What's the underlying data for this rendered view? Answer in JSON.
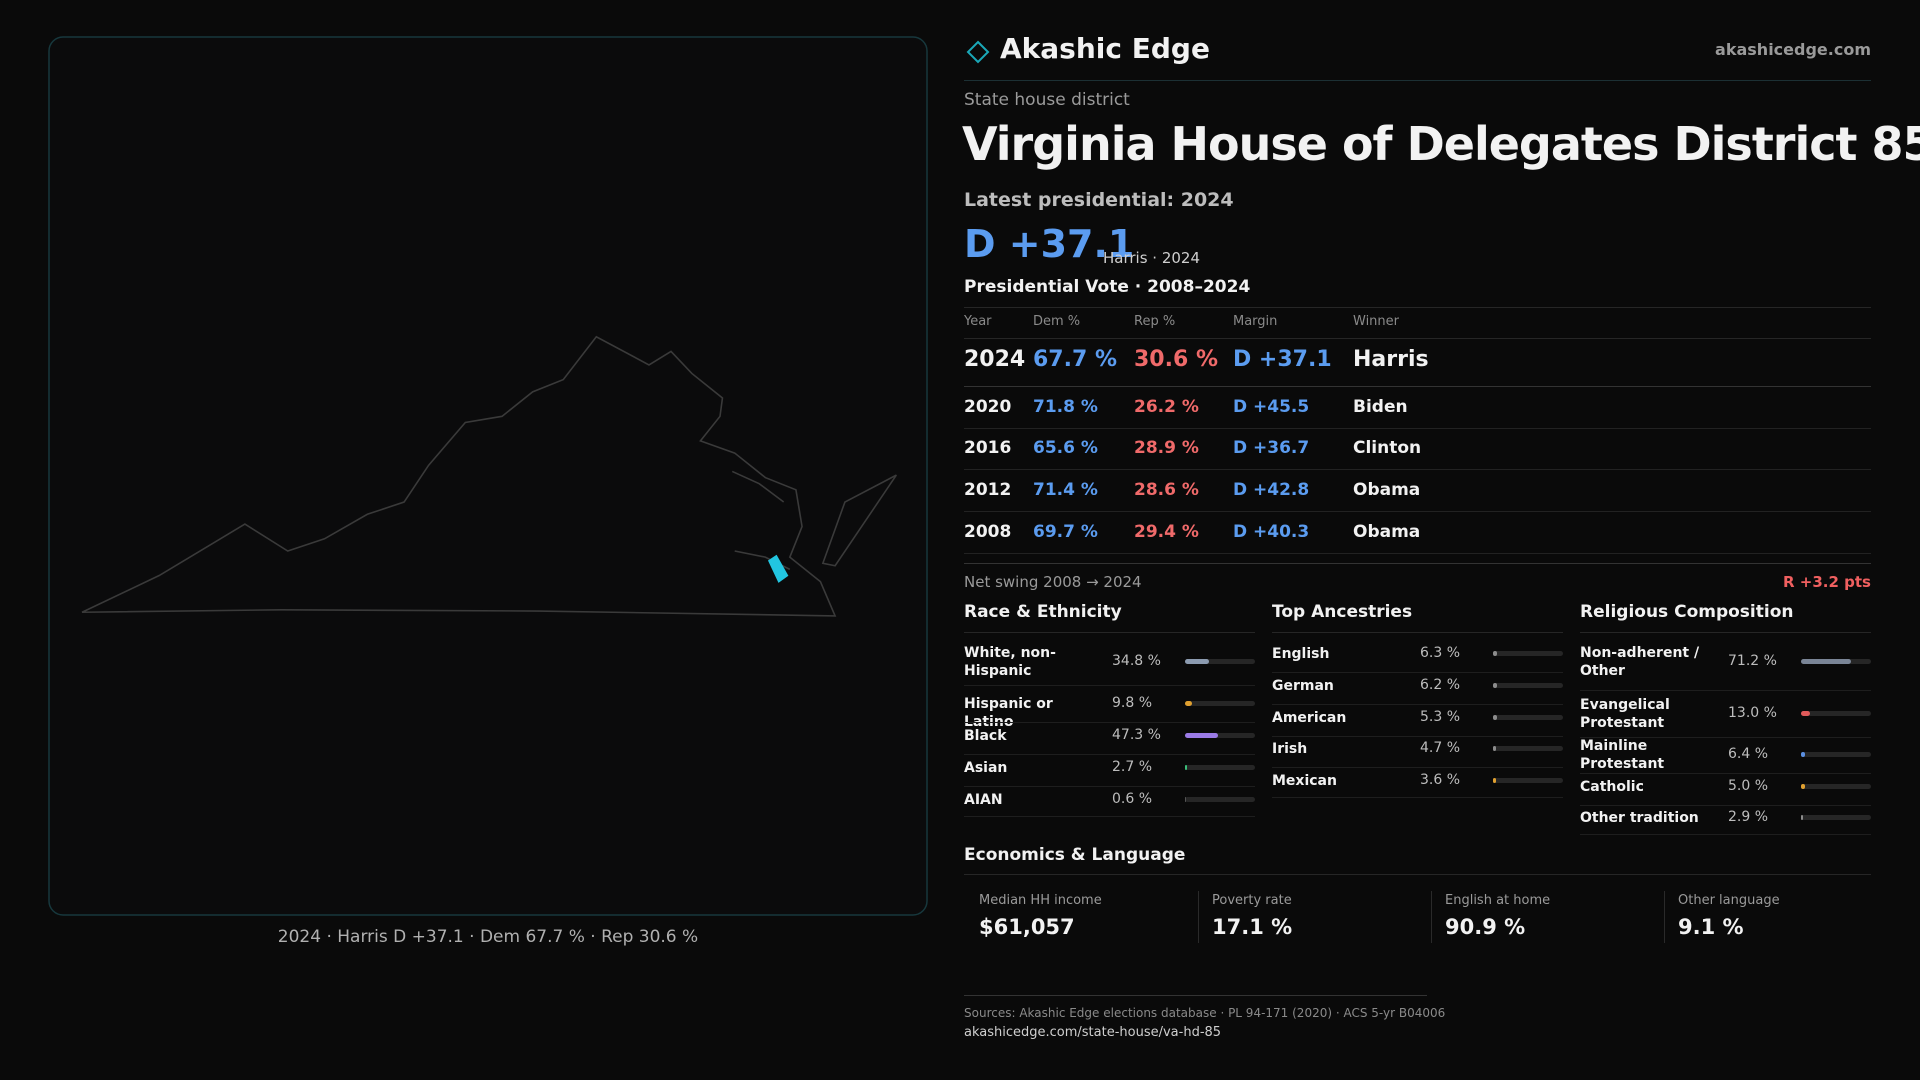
{
  "header": {
    "brand": "Akashic Edge",
    "site": "akashicedge.com"
  },
  "district": {
    "kind": "State house district",
    "title": "Virginia House of Delegates District 85",
    "latest": "Latest presidential: 2024",
    "margin": "D +37.1",
    "margin_note": "Harris · 2024"
  },
  "map": {
    "caption": "2024 · Harris D +37.1 · Dem 67.7 % · Rep 30.6 %"
  },
  "presidential": {
    "title": "Presidential Vote · 2008–2024",
    "columns": [
      "Year",
      "Dem %",
      "Rep %",
      "Margin",
      "Winner"
    ],
    "rows": [
      [
        "2024",
        "67.7 %",
        "30.6 %",
        "D +37.1",
        "Harris"
      ],
      [
        "2020",
        "71.8 %",
        "26.2 %",
        "D +45.5",
        "Biden"
      ],
      [
        "2016",
        "65.6 %",
        "28.9 %",
        "D +36.7",
        "Clinton"
      ],
      [
        "2012",
        "71.4 %",
        "28.6 %",
        "D +42.8",
        "Obama"
      ],
      [
        "2008",
        "69.7 %",
        "29.4 %",
        "D +40.3",
        "Obama"
      ]
    ]
  },
  "swing": {
    "label": "Net swing 2008 → 2024",
    "value": "R +3.2 pts"
  },
  "race": {
    "title": "Race & Ethnicity",
    "rows": [
      {
        "label": "White, non-Hispanic",
        "value": 34.8,
        "value_label": "34.8 %",
        "color": "#8c9bb0"
      },
      {
        "label": "Hispanic or Latino",
        "value": 9.8,
        "value_label": "9.8 %",
        "color": "#e0a030"
      },
      {
        "label": "Black",
        "value": 47.3,
        "value_label": "47.3 %",
        "color": "#9b7be6"
      },
      {
        "label": "Asian",
        "value": 2.7,
        "value_label": "2.7 %",
        "color": "#3cbf7a"
      },
      {
        "label": "AIAN",
        "value": 0.6,
        "value_label": "0.6 %",
        "color": "#555555"
      }
    ]
  },
  "ancestry": {
    "title": "Top Ancestries",
    "rows": [
      {
        "label": "English",
        "value": 6.3,
        "value_label": "6.3 %",
        "color": "#8c8c8c"
      },
      {
        "label": "German",
        "value": 6.2,
        "value_label": "6.2 %",
        "color": "#8c8c8c"
      },
      {
        "label": "American",
        "value": 5.3,
        "value_label": "5.3 %",
        "color": "#8c8c8c"
      },
      {
        "label": "Irish",
        "value": 4.7,
        "value_label": "4.7 %",
        "color": "#8c8c8c"
      },
      {
        "label": "Mexican",
        "value": 3.6,
        "value_label": "3.6 %",
        "color": "#e0a030"
      }
    ]
  },
  "religion": {
    "title": "Religious Composition",
    "rows": [
      {
        "label": "Non-adherent / Other",
        "value": 71.2,
        "value_label": "71.2 %",
        "color": "#7a8596"
      },
      {
        "label": "Evangelical Protestant",
        "value": 13.0,
        "value_label": "13.0 %",
        "color": "#e05a5a"
      },
      {
        "label": "Mainline Protestant",
        "value": 6.4,
        "value_label": "6.4 %",
        "color": "#5b8fe0"
      },
      {
        "label": "Catholic",
        "value": 5.0,
        "value_label": "5.0 %",
        "color": "#e0a030"
      },
      {
        "label": "Other tradition",
        "value": 2.9,
        "value_label": "2.9 %",
        "color": "#8c8c8c"
      }
    ]
  },
  "economics": {
    "title": "Economics & Language",
    "items": [
      {
        "label": "Median HH income",
        "value": "$61,057"
      },
      {
        "label": "Poverty rate",
        "value": "17.1 %"
      },
      {
        "label": "English at home",
        "value": "90.9 %"
      },
      {
        "label": "Other language",
        "value": "9.1 %"
      }
    ]
  },
  "footer": {
    "sources": "Sources: Akashic Edge elections database · PL 94-171 (2020) · ACS 5-yr B04006",
    "url": "akashicedge.com/state-house/va-hd-85"
  }
}
